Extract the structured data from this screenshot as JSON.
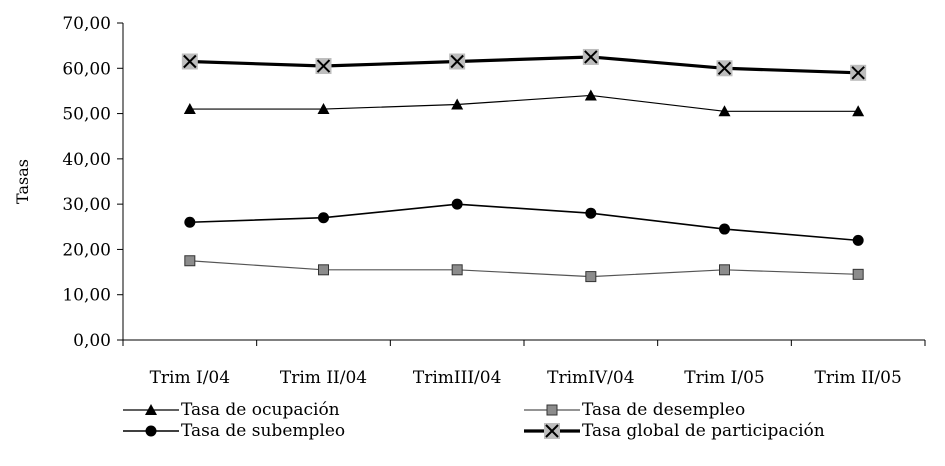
{
  "chart_data": {
    "type": "line",
    "title": "",
    "xlabel": "",
    "ylabel": "Tasas",
    "ylim": [
      0,
      70
    ],
    "y_ticks": [
      "0,00",
      "10,00",
      "20,00",
      "30,00",
      "40,00",
      "50,00",
      "60,00",
      "70,00"
    ],
    "categories": [
      "Trim I/04",
      "Trim II/04",
      "TrimIII/04",
      "TrimIV/04",
      "Trim I/05",
      "Trim II/05"
    ],
    "grid": false,
    "legend_position": "bottom",
    "series": [
      {
        "name": "Tasa de ocupación",
        "marker": "triangle",
        "color": "#000000",
        "values": [
          51.0,
          51.0,
          52.0,
          54.0,
          50.5,
          50.5
        ]
      },
      {
        "name": "Tasa de desempleo",
        "marker": "square",
        "color": "#555555",
        "values": [
          17.5,
          15.5,
          15.5,
          14.0,
          15.5,
          14.5
        ]
      },
      {
        "name": "Tasa de subempleo",
        "marker": "circle",
        "color": "#000000",
        "values": [
          26.0,
          27.0,
          30.0,
          28.0,
          24.5,
          22.0
        ]
      },
      {
        "name": "Tasa global de participación",
        "marker": "x-square",
        "color": "#000000",
        "values": [
          61.5,
          60.5,
          61.5,
          62.5,
          60.0,
          59.0
        ]
      }
    ]
  }
}
